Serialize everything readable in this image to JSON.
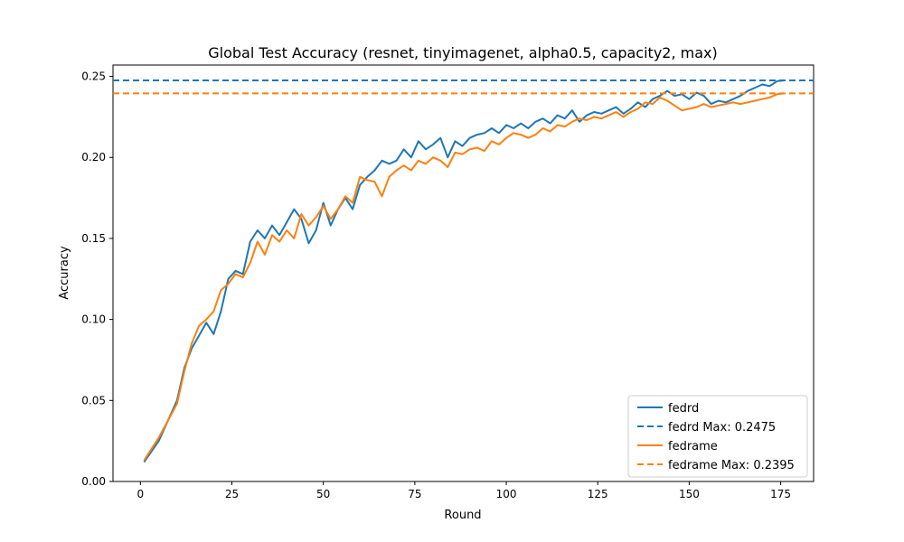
{
  "chart_data": {
    "type": "line",
    "title": "Global Test Accuracy (resnet, tinyimagenet, alpha0.5, capacity2, max)",
    "xlabel": "Round",
    "ylabel": "Accuracy",
    "xlim": [
      -7.5,
      184
    ],
    "ylim": [
      0.0,
      0.257
    ],
    "xticks": [
      "0",
      "25",
      "50",
      "75",
      "100",
      "125",
      "150",
      "175"
    ],
    "yticks": [
      "0.00",
      "0.05",
      "0.10",
      "0.15",
      "0.20",
      "0.25"
    ],
    "grid": false,
    "legend_position": "lower-right",
    "series": [
      {
        "name": "fedrd",
        "color": "#1f77b4",
        "x": [
          1,
          5,
          10,
          12,
          14,
          16,
          18,
          20,
          22,
          24,
          26,
          28,
          30,
          32,
          34,
          36,
          38,
          40,
          42,
          44,
          46,
          48,
          50,
          52,
          54,
          56,
          58,
          60,
          62,
          64,
          66,
          68,
          70,
          72,
          74,
          76,
          78,
          80,
          82,
          84,
          86,
          88,
          90,
          92,
          94,
          96,
          98,
          100,
          102,
          104,
          106,
          108,
          110,
          112,
          114,
          116,
          118,
          120,
          122,
          124,
          126,
          128,
          130,
          132,
          134,
          136,
          138,
          140,
          142,
          144,
          146,
          148,
          150,
          152,
          154,
          156,
          158,
          160,
          162,
          164,
          166,
          168,
          170,
          172,
          174,
          176
        ],
        "y": [
          0.012,
          0.025,
          0.05,
          0.07,
          0.082,
          0.09,
          0.098,
          0.091,
          0.105,
          0.125,
          0.13,
          0.128,
          0.148,
          0.155,
          0.15,
          0.158,
          0.152,
          0.16,
          0.168,
          0.162,
          0.147,
          0.155,
          0.172,
          0.158,
          0.168,
          0.175,
          0.168,
          0.183,
          0.188,
          0.192,
          0.198,
          0.196,
          0.198,
          0.205,
          0.2,
          0.21,
          0.205,
          0.208,
          0.212,
          0.2,
          0.21,
          0.207,
          0.212,
          0.214,
          0.215,
          0.218,
          0.215,
          0.22,
          0.218,
          0.221,
          0.218,
          0.222,
          0.224,
          0.221,
          0.226,
          0.224,
          0.229,
          0.222,
          0.226,
          0.228,
          0.227,
          0.229,
          0.231,
          0.227,
          0.23,
          0.234,
          0.231,
          0.236,
          0.238,
          0.241,
          0.238,
          0.239,
          0.236,
          0.24,
          0.238,
          0.233,
          0.235,
          0.234,
          0.236,
          0.238,
          0.241,
          0.243,
          0.245,
          0.244,
          0.247,
          0.2475
        ]
      },
      {
        "name": "fedrd Max: 0.2475",
        "color": "#1f77b4",
        "dashed": true,
        "y_const": 0.2475
      },
      {
        "name": "fedrame",
        "color": "#ff7f0e",
        "x": [
          1,
          5,
          10,
          12,
          14,
          16,
          18,
          20,
          22,
          24,
          26,
          28,
          30,
          32,
          34,
          36,
          38,
          40,
          42,
          44,
          46,
          48,
          50,
          52,
          54,
          56,
          58,
          60,
          62,
          64,
          66,
          68,
          70,
          72,
          74,
          76,
          78,
          80,
          82,
          84,
          86,
          88,
          90,
          92,
          94,
          96,
          98,
          100,
          102,
          104,
          106,
          108,
          110,
          112,
          114,
          116,
          118,
          120,
          122,
          124,
          126,
          128,
          130,
          132,
          134,
          136,
          138,
          140,
          142,
          144,
          146,
          148,
          150,
          152,
          154,
          156,
          158,
          160,
          162,
          164,
          166,
          168,
          170,
          172,
          174,
          176
        ],
        "y": [
          0.013,
          0.027,
          0.048,
          0.068,
          0.085,
          0.096,
          0.1,
          0.105,
          0.118,
          0.122,
          0.128,
          0.126,
          0.135,
          0.148,
          0.14,
          0.152,
          0.148,
          0.155,
          0.15,
          0.165,
          0.158,
          0.163,
          0.17,
          0.162,
          0.168,
          0.176,
          0.172,
          0.188,
          0.186,
          0.185,
          0.176,
          0.188,
          0.192,
          0.195,
          0.192,
          0.198,
          0.196,
          0.2,
          0.198,
          0.194,
          0.203,
          0.202,
          0.205,
          0.206,
          0.204,
          0.21,
          0.208,
          0.212,
          0.215,
          0.214,
          0.212,
          0.214,
          0.218,
          0.216,
          0.22,
          0.219,
          0.222,
          0.224,
          0.223,
          0.225,
          0.224,
          0.226,
          0.228,
          0.225,
          0.228,
          0.23,
          0.234,
          0.233,
          0.237,
          0.235,
          0.232,
          0.229,
          0.23,
          0.231,
          0.233,
          0.231,
          0.232,
          0.233,
          0.234,
          0.233,
          0.234,
          0.235,
          0.236,
          0.237,
          0.239,
          0.2395
        ]
      },
      {
        "name": "fedrame Max: 0.2395",
        "color": "#ff7f0e",
        "dashed": true,
        "y_const": 0.2395
      }
    ]
  }
}
